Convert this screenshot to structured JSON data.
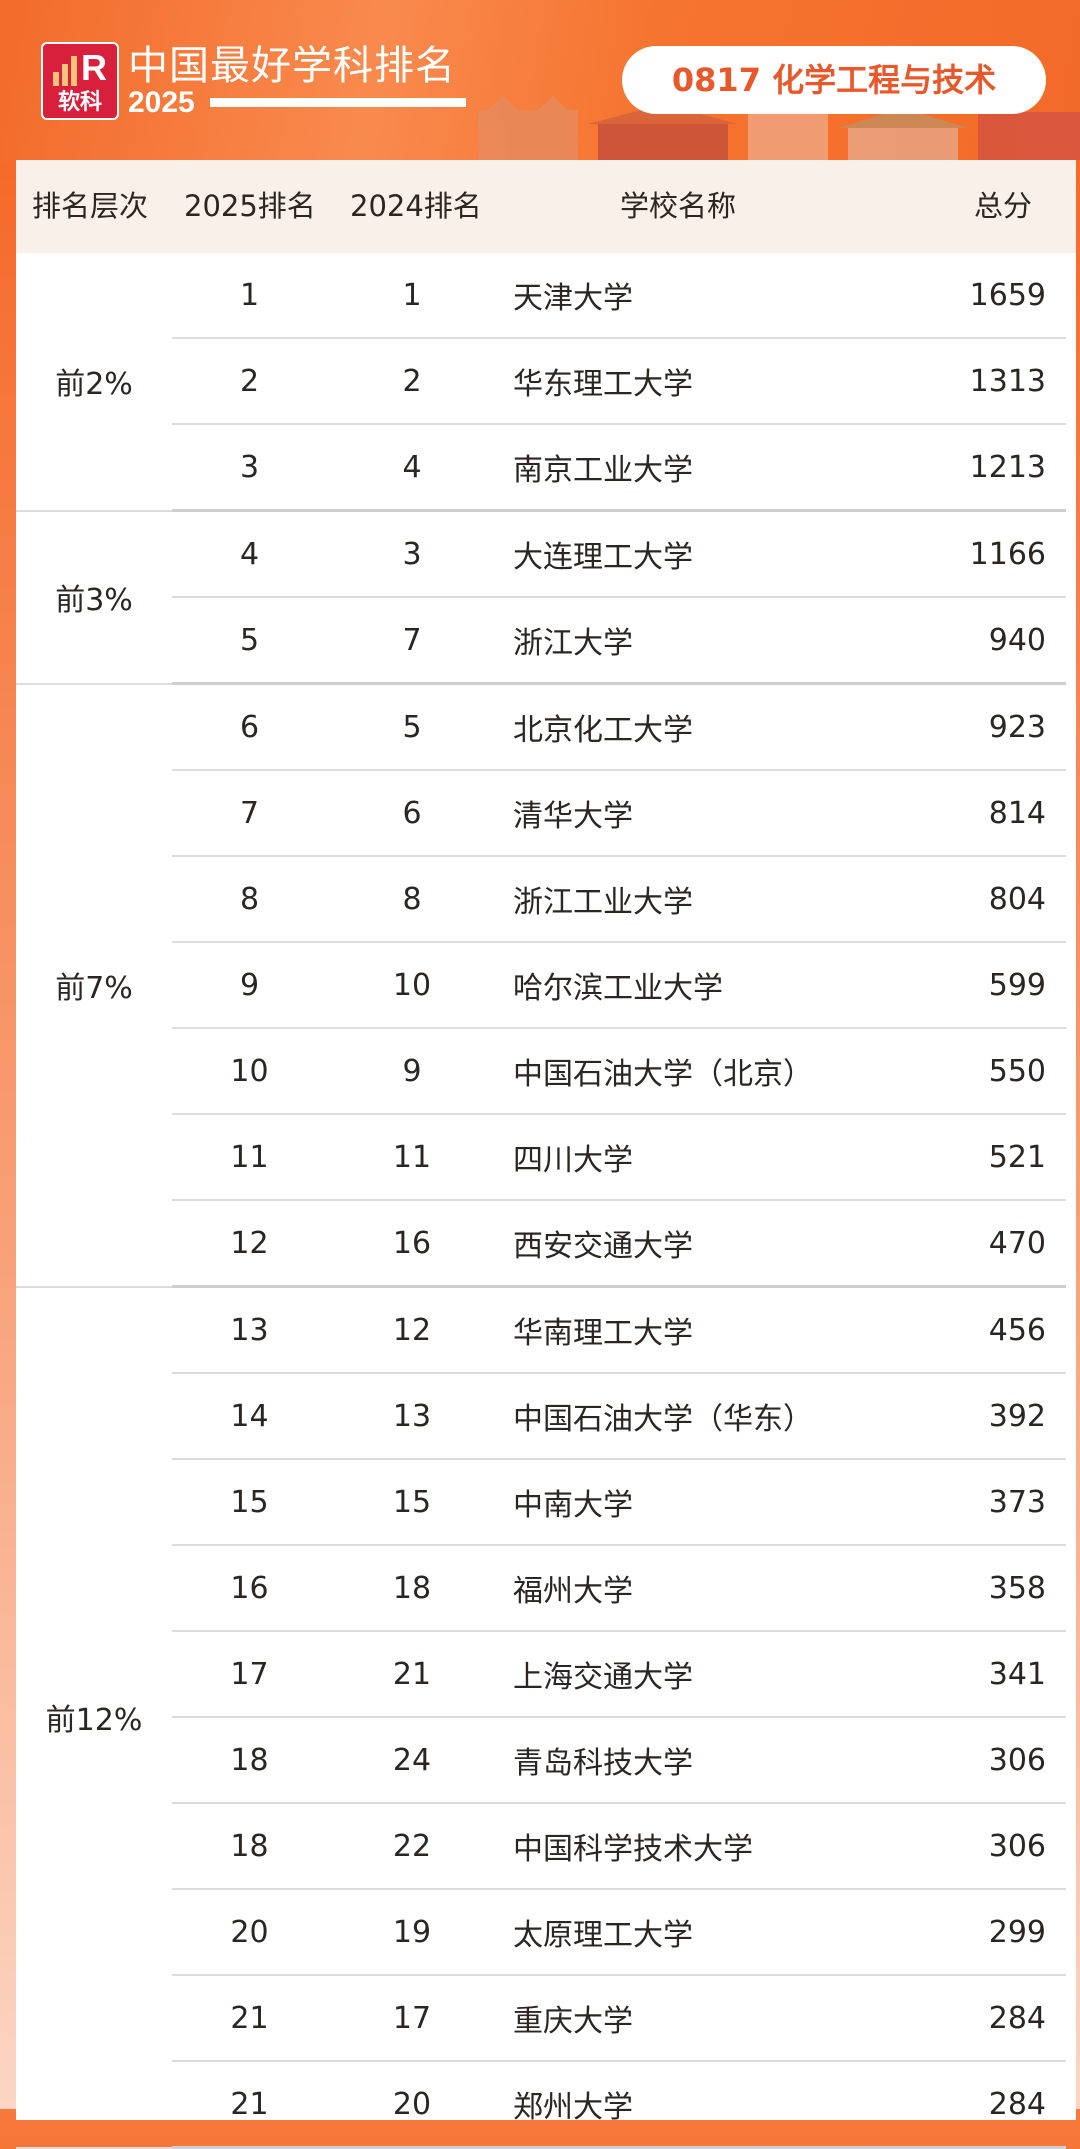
{
  "header": {
    "logo_text": "软科",
    "brand_title": "中国最好学科排名",
    "brand_year": "2025",
    "subject": "0817 化学工程与技术",
    "accent_color": "#f26b2a",
    "subject_color": "#e8582b"
  },
  "table": {
    "columns": [
      "排名层次",
      "2025排名",
      "2024排名",
      "学校名称",
      "总分"
    ],
    "groups": [
      {
        "tier": "前2%",
        "rows": [
          {
            "rank2025": "1",
            "rank2024": "1",
            "school": "天津大学",
            "score": "1659"
          },
          {
            "rank2025": "2",
            "rank2024": "2",
            "school": "华东理工大学",
            "score": "1313"
          },
          {
            "rank2025": "3",
            "rank2024": "4",
            "school": "南京工业大学",
            "score": "1213"
          }
        ]
      },
      {
        "tier": "前3%",
        "rows": [
          {
            "rank2025": "4",
            "rank2024": "3",
            "school": "大连理工大学",
            "score": "1166"
          },
          {
            "rank2025": "5",
            "rank2024": "7",
            "school": "浙江大学",
            "score": "940"
          }
        ]
      },
      {
        "tier": "前7%",
        "rows": [
          {
            "rank2025": "6",
            "rank2024": "5",
            "school": "北京化工大学",
            "score": "923"
          },
          {
            "rank2025": "7",
            "rank2024": "6",
            "school": "清华大学",
            "score": "814"
          },
          {
            "rank2025": "8",
            "rank2024": "8",
            "school": "浙江工业大学",
            "score": "804"
          },
          {
            "rank2025": "9",
            "rank2024": "10",
            "school": "哈尔滨工业大学",
            "score": "599"
          },
          {
            "rank2025": "10",
            "rank2024": "9",
            "school": "中国石油大学（北京）",
            "score": "550"
          },
          {
            "rank2025": "11",
            "rank2024": "11",
            "school": "四川大学",
            "score": "521"
          },
          {
            "rank2025": "12",
            "rank2024": "16",
            "school": "西安交通大学",
            "score": "470"
          }
        ]
      },
      {
        "tier": "前12%",
        "rows": [
          {
            "rank2025": "13",
            "rank2024": "12",
            "school": "华南理工大学",
            "score": "456"
          },
          {
            "rank2025": "14",
            "rank2024": "13",
            "school": "中国石油大学（华东）",
            "score": "392"
          },
          {
            "rank2025": "15",
            "rank2024": "15",
            "school": "中南大学",
            "score": "373"
          },
          {
            "rank2025": "16",
            "rank2024": "18",
            "school": "福州大学",
            "score": "358"
          },
          {
            "rank2025": "17",
            "rank2024": "21",
            "school": "上海交通大学",
            "score": "341"
          },
          {
            "rank2025": "18",
            "rank2024": "24",
            "school": "青岛科技大学",
            "score": "306"
          },
          {
            "rank2025": "18",
            "rank2024": "22",
            "school": "中国科学技术大学",
            "score": "306"
          },
          {
            "rank2025": "20",
            "rank2024": "19",
            "school": "太原理工大学",
            "score": "299"
          },
          {
            "rank2025": "21",
            "rank2024": "17",
            "school": "重庆大学",
            "score": "284"
          },
          {
            "rank2025": "21",
            "rank2024": "20",
            "school": "郑州大学",
            "score": "284"
          }
        ]
      }
    ]
  }
}
